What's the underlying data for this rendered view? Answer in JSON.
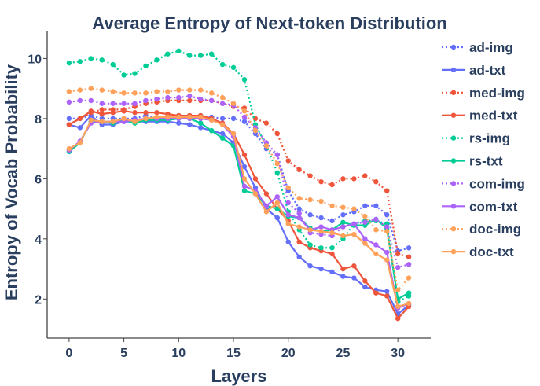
{
  "chart_data": {
    "type": "line",
    "title": "Average Entropy of Next-token Distribution",
    "xlabel": "Layers",
    "ylabel": "Entropy of Vocab Probability",
    "xlim": [
      -2,
      33
    ],
    "ylim": [
      0.7,
      10.9
    ],
    "xticks": [
      0,
      5,
      10,
      15,
      20,
      25,
      30
    ],
    "yticks": [
      2,
      4,
      6,
      8,
      10
    ],
    "grid": false,
    "legend_position": "right",
    "x": [
      0,
      1,
      2,
      3,
      4,
      5,
      6,
      7,
      8,
      9,
      10,
      11,
      12,
      13,
      14,
      15,
      16,
      17,
      18,
      19,
      20,
      21,
      22,
      23,
      24,
      25,
      26,
      27,
      28,
      29,
      30,
      31
    ],
    "series": [
      {
        "name": "ad-img",
        "color": "#636efa",
        "dash": "dot",
        "values": [
          8.0,
          8.0,
          8.1,
          8.0,
          8.0,
          8.0,
          8.0,
          8.1,
          8.0,
          8.05,
          8.1,
          8.1,
          8.1,
          8.05,
          8.0,
          8.0,
          7.9,
          7.5,
          7.0,
          6.8,
          5.6,
          5.0,
          4.8,
          4.7,
          4.6,
          4.8,
          4.9,
          5.1,
          5.1,
          4.8,
          3.6,
          3.7
        ]
      },
      {
        "name": "ad-txt",
        "color": "#636efa",
        "dash": "solid",
        "values": [
          7.8,
          7.7,
          8.1,
          7.8,
          7.8,
          7.9,
          7.9,
          7.9,
          7.9,
          7.9,
          7.85,
          7.8,
          7.7,
          7.6,
          7.5,
          7.2,
          6.4,
          5.7,
          5.0,
          4.7,
          3.9,
          3.4,
          3.1,
          3.0,
          2.9,
          2.75,
          2.7,
          2.4,
          2.3,
          2.25,
          1.5,
          1.8
        ]
      },
      {
        "name": "med-img",
        "color": "#ef553b",
        "dash": "dot",
        "values": [
          7.8,
          8.0,
          8.2,
          8.3,
          8.3,
          8.3,
          8.4,
          8.5,
          8.55,
          8.6,
          8.6,
          8.6,
          8.6,
          8.6,
          8.5,
          8.4,
          8.35,
          8.0,
          7.85,
          7.5,
          6.6,
          6.3,
          6.1,
          5.9,
          5.8,
          6.0,
          6.0,
          6.1,
          5.9,
          5.6,
          3.5,
          3.4
        ]
      },
      {
        "name": "med-txt",
        "color": "#ef553b",
        "dash": "solid",
        "values": [
          7.8,
          8.0,
          8.25,
          8.15,
          8.2,
          8.25,
          8.2,
          8.2,
          8.2,
          8.15,
          8.1,
          8.1,
          8.1,
          8.0,
          7.85,
          7.5,
          6.8,
          6.0,
          5.5,
          5.0,
          4.6,
          3.9,
          3.7,
          3.6,
          3.5,
          3.0,
          3.1,
          2.6,
          2.2,
          2.1,
          1.35,
          1.75
        ]
      },
      {
        "name": "rs-img",
        "color": "#00cc96",
        "dash": "dot",
        "values": [
          9.85,
          9.9,
          10.0,
          9.95,
          9.8,
          9.45,
          9.5,
          9.75,
          9.95,
          10.15,
          10.25,
          10.1,
          10.1,
          10.15,
          9.8,
          9.7,
          9.3,
          7.8,
          7.1,
          6.2,
          4.9,
          4.3,
          3.8,
          3.7,
          3.7,
          4.0,
          4.5,
          4.6,
          4.6,
          4.5,
          1.9,
          2.1
        ]
      },
      {
        "name": "rs-txt",
        "color": "#00cc96",
        "dash": "solid",
        "values": [
          6.9,
          7.2,
          7.9,
          7.9,
          7.85,
          7.95,
          7.85,
          7.95,
          7.95,
          7.95,
          8.0,
          8.0,
          7.85,
          7.6,
          7.35,
          7.1,
          5.6,
          5.5,
          5.1,
          5.0,
          4.75,
          4.7,
          4.35,
          4.25,
          4.3,
          4.55,
          4.45,
          4.45,
          4.65,
          4.35,
          2.0,
          2.2
        ]
      },
      {
        "name": "com-img",
        "color": "#ab63fa",
        "dash": "dot",
        "values": [
          8.55,
          8.6,
          8.6,
          8.5,
          8.5,
          8.5,
          8.5,
          8.6,
          8.65,
          8.7,
          8.7,
          8.75,
          8.65,
          8.6,
          8.5,
          8.45,
          8.05,
          7.7,
          7.2,
          6.8,
          5.2,
          4.85,
          4.2,
          4.15,
          4.1,
          4.4,
          4.5,
          4.55,
          4.65,
          4.4,
          3.05,
          3.15
        ]
      },
      {
        "name": "com-txt",
        "color": "#ab63fa",
        "dash": "solid",
        "values": [
          6.95,
          7.25,
          7.85,
          7.9,
          7.9,
          7.9,
          7.95,
          8.0,
          8.0,
          8.0,
          8.0,
          8.0,
          8.0,
          7.95,
          7.8,
          7.4,
          5.75,
          5.6,
          5.1,
          5.4,
          4.8,
          4.7,
          4.3,
          4.4,
          4.3,
          4.4,
          4.5,
          4.0,
          3.8,
          3.55,
          1.7,
          1.85
        ]
      },
      {
        "name": "doc-img",
        "color": "#ffa15a",
        "dash": "dot",
        "values": [
          8.9,
          8.95,
          9.0,
          8.95,
          8.9,
          8.85,
          8.85,
          8.85,
          8.9,
          8.9,
          8.95,
          8.95,
          8.95,
          8.85,
          8.7,
          8.5,
          8.25,
          7.6,
          7.1,
          6.5,
          5.7,
          5.35,
          5.3,
          5.25,
          5.1,
          5.05,
          5.0,
          4.75,
          4.3,
          4.25,
          2.3,
          2.7
        ]
      },
      {
        "name": "doc-txt",
        "color": "#ffa15a",
        "dash": "solid",
        "values": [
          7.0,
          7.2,
          7.95,
          7.9,
          7.9,
          8.0,
          7.9,
          8.0,
          8.05,
          8.05,
          8.05,
          8.05,
          8.05,
          7.95,
          7.8,
          7.5,
          6.0,
          5.5,
          4.9,
          5.2,
          4.5,
          4.4,
          4.3,
          4.25,
          4.2,
          4.1,
          4.15,
          3.85,
          3.5,
          3.3,
          1.75,
          1.85
        ]
      }
    ]
  }
}
